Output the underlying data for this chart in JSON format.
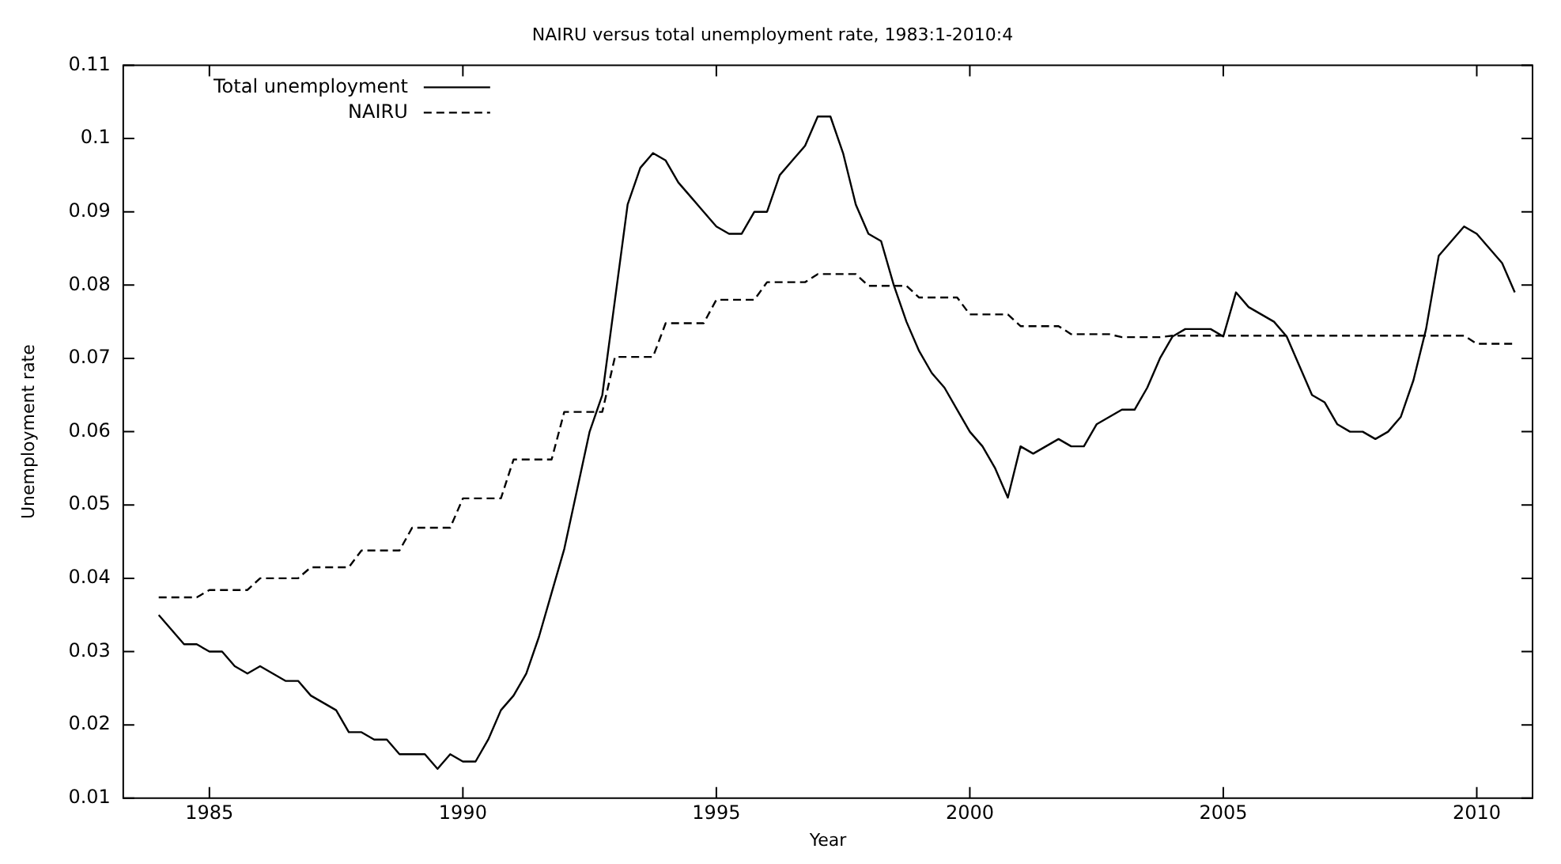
{
  "chart_data": {
    "type": "line",
    "title": "NAIRU versus total unemployment rate, 1983:1-2010:4",
    "xlabel": "Year",
    "ylabel": "Unemployment rate",
    "x": [
      1984,
      1984.25,
      1984.5,
      1984.75,
      1985,
      1985.25,
      1985.5,
      1985.75,
      1986,
      1986.25,
      1986.5,
      1986.75,
      1987,
      1987.25,
      1987.5,
      1987.75,
      1988,
      1988.25,
      1988.5,
      1988.75,
      1989,
      1989.25,
      1989.5,
      1989.75,
      1990,
      1990.25,
      1990.5,
      1990.75,
      1991,
      1991.25,
      1991.5,
      1991.75,
      1992,
      1992.25,
      1992.5,
      1992.75,
      1993,
      1993.25,
      1993.5,
      1993.75,
      1994,
      1994.25,
      1994.5,
      1994.75,
      1995,
      1995.25,
      1995.5,
      1995.75,
      1996,
      1996.25,
      1996.5,
      1996.75,
      1997,
      1997.25,
      1997.5,
      1997.75,
      1998,
      1998.25,
      1998.5,
      1998.75,
      1999,
      1999.25,
      1999.5,
      1999.75,
      2000,
      2000.25,
      2000.5,
      2000.75,
      2001,
      2001.25,
      2001.5,
      2001.75,
      2002,
      2002.25,
      2002.5,
      2002.75,
      2003,
      2003.25,
      2003.5,
      2003.75,
      2004,
      2004.25,
      2004.5,
      2004.75,
      2005,
      2005.25,
      2005.5,
      2005.75,
      2006,
      2006.25,
      2006.5,
      2006.75,
      2007,
      2007.25,
      2007.5,
      2007.75,
      2008,
      2008.25,
      2008.5,
      2008.75,
      2009,
      2009.25,
      2009.5,
      2009.75,
      2010,
      2010.25,
      2010.5,
      2010.75
    ],
    "series": [
      {
        "name": "Total unemployment",
        "color": "#000000",
        "line_style": "solid",
        "values": [
          0.035,
          0.033,
          0.031,
          0.031,
          0.03,
          0.03,
          0.028,
          0.027,
          0.028,
          0.027,
          0.026,
          0.026,
          0.024,
          0.023,
          0.022,
          0.019,
          0.019,
          0.018,
          0.018,
          0.016,
          0.016,
          0.016,
          0.014,
          0.016,
          0.015,
          0.015,
          0.018,
          0.022,
          0.024,
          0.027,
          0.032,
          0.038,
          0.044,
          0.052,
          0.06,
          0.065,
          0.078,
          0.091,
          0.096,
          0.098,
          0.097,
          0.094,
          0.092,
          0.09,
          0.088,
          0.087,
          0.087,
          0.09,
          0.09,
          0.095,
          0.097,
          0.099,
          0.103,
          0.103,
          0.098,
          0.091,
          0.087,
          0.086,
          0.08,
          0.075,
          0.071,
          0.068,
          0.066,
          0.063,
          0.06,
          0.058,
          0.055,
          0.051,
          0.058,
          0.057,
          0.058,
          0.059,
          0.058,
          0.058,
          0.061,
          0.062,
          0.063,
          0.063,
          0.066,
          0.07,
          0.073,
          0.074,
          0.074,
          0.074,
          0.073,
          0.079,
          0.077,
          0.076,
          0.075,
          0.073,
          0.069,
          0.065,
          0.064,
          0.061,
          0.06,
          0.06,
          0.059,
          0.06,
          0.062,
          0.067,
          0.074,
          0.084,
          0.086,
          0.088,
          0.087,
          0.085,
          0.083,
          0.079
        ]
      },
      {
        "name": "NAIRU",
        "color": "#000000",
        "line_style": "dashed",
        "values": [
          0.0374,
          0.0374,
          0.0374,
          0.0374,
          0.0384,
          0.0384,
          0.0384,
          0.0384,
          0.04,
          0.04,
          0.04,
          0.04,
          0.0415,
          0.0415,
          0.0415,
          0.0415,
          0.0438,
          0.0438,
          0.0438,
          0.0438,
          0.0469,
          0.0469,
          0.0469,
          0.0469,
          0.0509,
          0.0509,
          0.0509,
          0.0509,
          0.0562,
          0.0562,
          0.0562,
          0.0562,
          0.0627,
          0.0627,
          0.0627,
          0.0627,
          0.0702,
          0.0702,
          0.0702,
          0.0702,
          0.0748,
          0.0748,
          0.0748,
          0.0748,
          0.078,
          0.078,
          0.078,
          0.078,
          0.0804,
          0.0804,
          0.0804,
          0.0804,
          0.0815,
          0.0815,
          0.0815,
          0.0815,
          0.0799,
          0.0799,
          0.0799,
          0.0799,
          0.0783,
          0.0783,
          0.0783,
          0.0783,
          0.076,
          0.076,
          0.076,
          0.076,
          0.0744,
          0.0744,
          0.0744,
          0.0744,
          0.0733,
          0.0733,
          0.0733,
          0.0733,
          0.0729,
          0.0729,
          0.0729,
          0.0729,
          0.0731,
          0.0731,
          0.0731,
          0.0731,
          0.0731,
          0.0731,
          0.0731,
          0.0731,
          0.0731,
          0.0731,
          0.0731,
          0.0731,
          0.0731,
          0.0731,
          0.0731,
          0.0731,
          0.0731,
          0.0731,
          0.0731,
          0.0731,
          0.0731,
          0.0731,
          0.0731,
          0.0731,
          0.072,
          0.072,
          0.072,
          0.072
        ]
      }
    ],
    "xlim": [
      1983.3,
      2011.1
    ],
    "xticks": [
      1985,
      1990,
      1995,
      2000,
      2005,
      2010
    ],
    "ylim": [
      0.01,
      0.11
    ],
    "yticks": [
      0.01,
      0.02,
      0.03,
      0.04,
      0.05,
      0.06,
      0.07,
      0.08,
      0.09,
      0.1,
      0.11
    ],
    "grid": false,
    "legend": "top left",
    "marker": "none"
  }
}
